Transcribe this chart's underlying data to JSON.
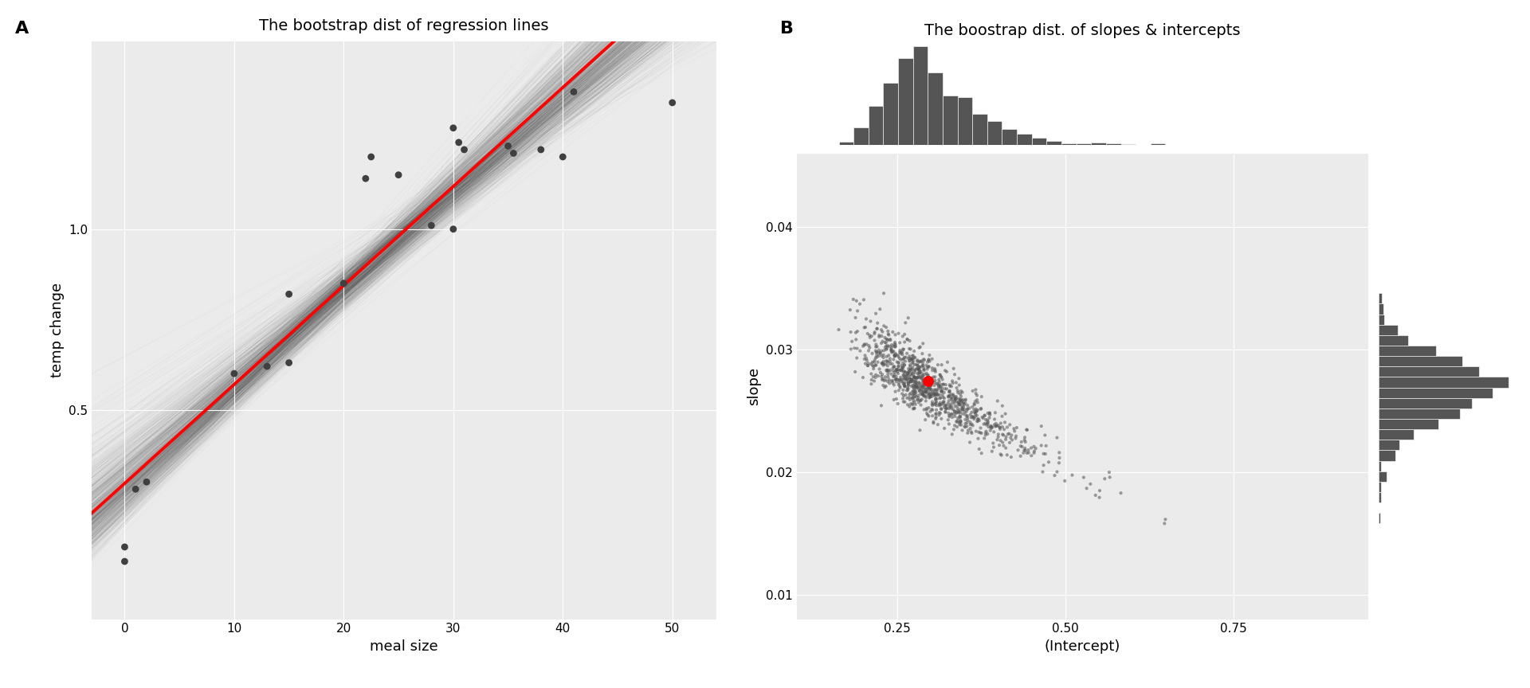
{
  "panel_A": {
    "title": "The bootstrap dist of regression lines",
    "xlabel": "meal size",
    "ylabel": "temp change",
    "xlim": [
      -3,
      54
    ],
    "ylim": [
      -0.08,
      1.52
    ],
    "yticks": [
      0.5,
      1.0
    ],
    "xticks": [
      0,
      10,
      20,
      30,
      40,
      50
    ],
    "bg_color": "#ebebeb",
    "grid_color": "white",
    "true_slope": 0.0274,
    "true_intercept": 0.296,
    "data_points": [
      [
        0.0,
        0.12
      ],
      [
        0.0,
        0.08
      ],
      [
        1.0,
        0.28
      ],
      [
        2.0,
        0.3
      ],
      [
        10.0,
        0.6
      ],
      [
        13.0,
        0.62
      ],
      [
        15.0,
        0.63
      ],
      [
        15.0,
        0.82
      ],
      [
        20.0,
        0.85
      ],
      [
        22.0,
        1.14
      ],
      [
        22.5,
        1.2
      ],
      [
        25.0,
        1.15
      ],
      [
        28.0,
        1.01
      ],
      [
        30.0,
        1.0
      ],
      [
        30.0,
        1.28
      ],
      [
        30.5,
        1.24
      ],
      [
        31.0,
        1.22
      ],
      [
        35.0,
        1.23
      ],
      [
        35.5,
        1.21
      ],
      [
        38.0,
        1.22
      ],
      [
        40.0,
        1.2
      ],
      [
        41.0,
        1.38
      ],
      [
        50.0,
        1.35
      ]
    ],
    "dot_color": "#404040",
    "dot_size": 40,
    "line_color": "red",
    "line_width": 2.8,
    "boot_line_alpha": 0.03,
    "boot_line_color": "#333333",
    "n_boot_lines": 1000
  },
  "panel_B": {
    "title": "The boostrap dist. of slopes & intercepts",
    "xlabel": "(Intercept)",
    "ylabel": "slope",
    "xlim": [
      0.1,
      0.95
    ],
    "ylim": [
      0.008,
      0.046
    ],
    "yticks": [
      0.01,
      0.02,
      0.03,
      0.04
    ],
    "xticks": [
      0.25,
      0.5,
      0.75
    ],
    "bg_color": "#ebebeb",
    "grid_color": "white",
    "true_intercept": 0.296,
    "true_slope": 0.0274,
    "dot_color": "#555555",
    "dot_size": 9,
    "dot_alpha": 0.55,
    "red_dot_color": "red",
    "red_dot_size": 100,
    "hist_color": "#555555",
    "hist_bins": 22
  },
  "label_fontsize": 13,
  "title_fontsize": 14,
  "tick_fontsize": 11,
  "panel_label_fontsize": 16
}
